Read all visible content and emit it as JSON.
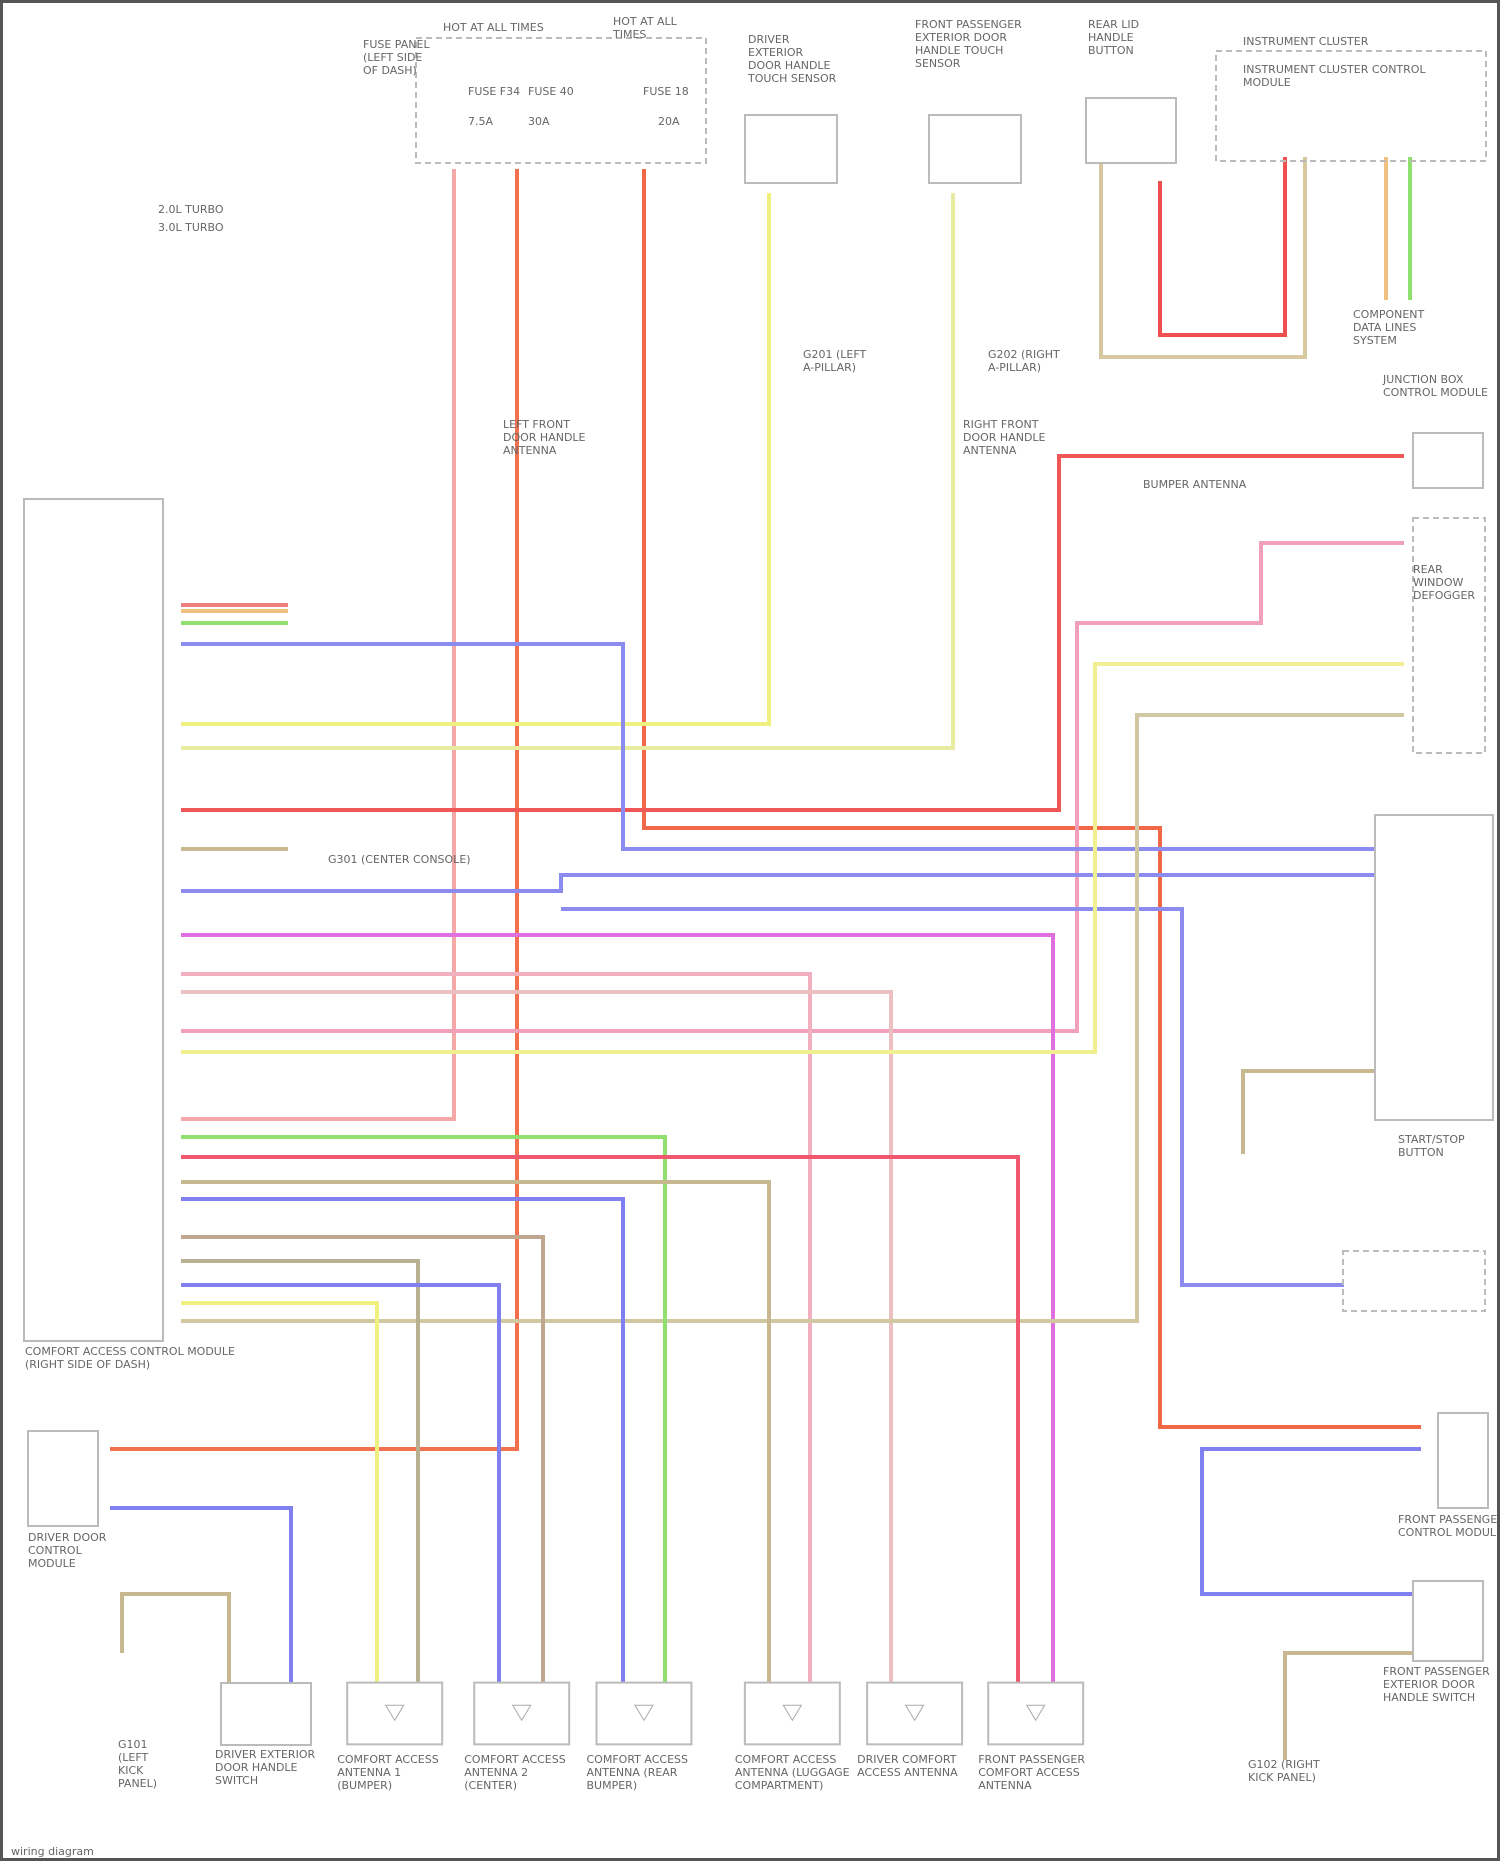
{
  "legend": [
    "2.0L TURBO",
    "3.0L TURBO"
  ],
  "components": {
    "fuse_panel": "FUSE PANEL (LEFT SIDE OF DASH)",
    "hot_at_all_times_1": "HOT AT ALL TIMES",
    "hot_at_all_times_2": "HOT AT ALL TIMES",
    "fuses": [
      "FUSE F34",
      "FUSE 40",
      "FUSE 18",
      "7.5A",
      "30A",
      "20A"
    ],
    "driver_handle_sensor": "DRIVER EXTERIOR DOOR HANDLE TOUCH SENSOR",
    "passenger_handle_sensor": "FRONT PASSENGER EXTERIOR DOOR HANDLE TOUCH SENSOR",
    "rear_lid_sensor": "REAR LID HANDLE BUTTON",
    "instrument_cluster": "INSTRUMENT CLUSTER",
    "instrument_cluster_module": "INSTRUMENT CLUSTER CONTROL MODULE",
    "can_bus": "COMPONENT DATA LINES SYSTEM",
    "driver_door_handle_ant": "LEFT FRONT DOOR HANDLE ANTENNA",
    "right_door_handle_ant": "RIGHT FRONT DOOR HANDLE ANTENNA",
    "junction_box": "JUNCTION BOX CONTROL MODULE",
    "bumper_ant": "BUMPER ANTENNA",
    "rear_window_defog": "REAR WINDOW DEFOGGER",
    "comfort_module": "COMFORT ACCESS CONTROL MODULE (RIGHT SIDE OF DASH)",
    "start_stop": "START/STOP BUTTON",
    "passenger_door_module": "FRONT PASSENGER DOOR CONTROL MODULE",
    "driver_door_module": "DRIVER DOOR CONTROL MODULE",
    "driver_door_switch": "DRIVER EXTERIOR DOOR HANDLE SWITCH",
    "passenger_door_switch": "FRONT PASSENGER EXTERIOR DOOR HANDLE SWITCH",
    "ground_left": "G201 (LEFT A-PILLAR)",
    "ground_right": "G202 (RIGHT A-PILLAR)",
    "ground_center": "G301 (CENTER CONSOLE)",
    "ground_lower_left": "G101 (LEFT KICK PANEL)",
    "ground_lower_right": "G102 (RIGHT KICK PANEL)",
    "antennas": [
      "COMFORT ACCESS ANTENNA 1 (BUMPER)",
      "COMFORT ACCESS ANTENNA 2 (CENTER)",
      "COMFORT ACCESS ANTENNA (REAR BUMPER)",
      "COMFORT ACCESS ANTENNA (LUGGAGE COMPARTMENT)",
      "DRIVER COMFORT ACCESS ANTENNA",
      "FRONT PASSENGER COMFORT ACCESS ANTENNA"
    ]
  },
  "footer": "wiring diagram"
}
